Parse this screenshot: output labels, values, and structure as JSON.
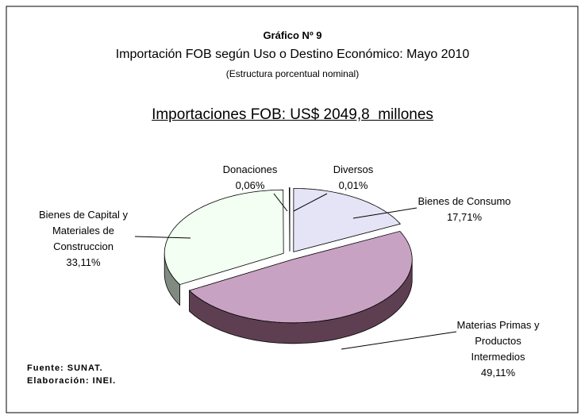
{
  "chart_data": {
    "type": "pie",
    "title": "Gráfico Nº 9",
    "subtitle": "Importación FOB según Uso o Destino Económico: Mayo 2010",
    "note": "(Estructura porcentual nominal)",
    "headline": "Importaciones FOB: US$ 2049,8  millones",
    "source": "Fuente: SUNAT.",
    "credit": "Elaboración: INEI.",
    "categories": [
      "Diversos",
      "Bienes de Consumo",
      "Materias Primas y Productos Intermedios",
      "Bienes de Capital y Materiales de Construccion",
      "Donaciones"
    ],
    "values": [
      0.01,
      17.71,
      49.11,
      33.11,
      0.06
    ],
    "value_labels": [
      "0,01%",
      "17,71%",
      "49,11%",
      "33,11%",
      "0,06%"
    ],
    "colors": [
      "#ffffff",
      "#e4e4f6",
      "#c8a2c2",
      "#f2fff2",
      "#ffffff"
    ],
    "side_colors": [
      "#bbbbbb",
      "#8c8cae",
      "#5e3f52",
      "#808a80",
      "#bbbbbb"
    ]
  }
}
